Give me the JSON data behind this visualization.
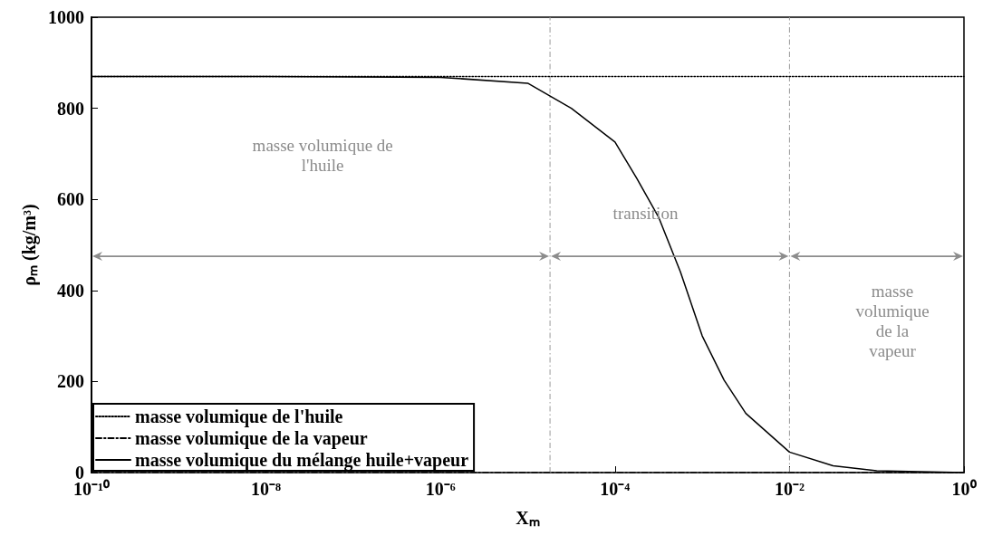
{
  "chart_data": {
    "type": "line",
    "xlabel": "Xₘ",
    "ylabel": "ρₘ (kg/m³)",
    "log": "x",
    "grid": false,
    "legend": "bottom left",
    "marker": "none",
    "xlim": [
      1e-10,
      1
    ],
    "ylim": [
      0,
      1000
    ],
    "xticks": [
      {
        "value": 1e-10,
        "label": "10⁻¹⁰"
      },
      {
        "value": 1e-08,
        "label": "10⁻⁸"
      },
      {
        "value": 1e-06,
        "label": "10⁻⁶"
      },
      {
        "value": 0.0001,
        "label": "10⁻⁴"
      },
      {
        "value": 0.01,
        "label": "10⁻²"
      },
      {
        "value": 1,
        "label": "10⁰"
      }
    ],
    "yticks": [
      0,
      200,
      400,
      600,
      800,
      1000
    ],
    "x": [
      1e-10,
      1e-08,
      1e-06,
      1e-05,
      3.16e-05,
      0.0001,
      0.000178,
      0.000316,
      0.000562,
      0.001,
      0.00178,
      0.00316,
      0.01,
      0.0316,
      0.1,
      0.316,
      1
    ],
    "series": [
      {
        "name": "masse volumique de l'huile",
        "color": "#000000",
        "line_style": "dotted",
        "values": [
          870,
          870,
          870,
          870,
          870,
          870,
          870,
          870,
          870,
          870,
          870,
          870,
          870,
          870,
          870,
          870,
          870
        ]
      },
      {
        "name": "masse volumique de la vapeur",
        "color": "#000000",
        "line_style": "dashed",
        "values": [
          0,
          0,
          0,
          0,
          0,
          0,
          0,
          0,
          0,
          0,
          0,
          0,
          0,
          0,
          0,
          0,
          0
        ]
      },
      {
        "name": "masse volumique du mélange huile+vapeur",
        "color": "#000000",
        "line_style": "solid",
        "values": [
          870,
          870,
          868,
          855,
          800,
          726,
          646,
          561,
          441,
          300,
          203,
          130,
          45,
          15,
          4,
          2,
          0
        ]
      }
    ],
    "ref_lines": [
      {
        "axis": "x",
        "value": 1.8e-05,
        "color": "#999999",
        "line_style": "dashed"
      },
      {
        "axis": "x",
        "value": 0.01,
        "color": "#999999",
        "line_style": "dashed"
      }
    ],
    "annotations": [
      "masse volumique de l'huile",
      "transition",
      "masse volumique de la vapeur"
    ]
  }
}
